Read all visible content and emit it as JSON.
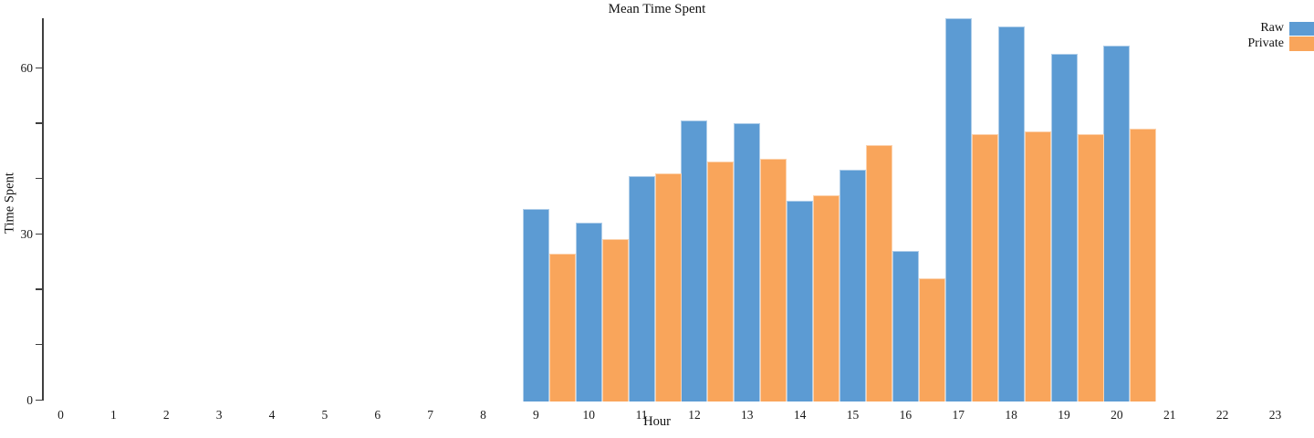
{
  "figure": {
    "title": "Mean Time Spent",
    "xlabel": "Hour",
    "ylabel": "Time Spent"
  },
  "legend": {
    "position": "upper right",
    "items": [
      {
        "label": "Raw",
        "color": "#5C9BD3"
      },
      {
        "label": "Private",
        "color": "#F9A55B"
      }
    ]
  },
  "chart_data": {
    "type": "bar",
    "title": "Mean Time Spent",
    "xlabel": "Hour",
    "ylabel": "Time Spent",
    "categories": [
      9,
      10,
      11,
      12,
      13,
      14,
      15,
      16,
      17,
      18,
      19,
      20
    ],
    "series": [
      {
        "name": "Raw",
        "color": "#5C9BD3",
        "values": [
          34.5,
          32,
          40.5,
          50.5,
          50,
          36,
          41.5,
          27,
          69,
          67.5,
          62.5,
          64
        ]
      },
      {
        "name": "Private",
        "color": "#F9A55B",
        "values": [
          26.5,
          29,
          41,
          43,
          43.5,
          37,
          46,
          22,
          48,
          48.5,
          48,
          49
        ]
      }
    ],
    "x_axis_ticks": [
      0,
      1,
      2,
      3,
      4,
      5,
      6,
      7,
      8,
      9,
      10,
      11,
      12,
      13,
      14,
      15,
      16,
      17,
      18,
      19,
      20,
      21,
      22,
      23
    ],
    "y_axis": {
      "labeled_ticks": [
        0,
        30,
        60
      ],
      "minor_ticks": [
        10,
        20,
        40,
        50
      ],
      "ylim": [
        0,
        69
      ]
    },
    "grid": false,
    "legend_position": "upper right"
  }
}
